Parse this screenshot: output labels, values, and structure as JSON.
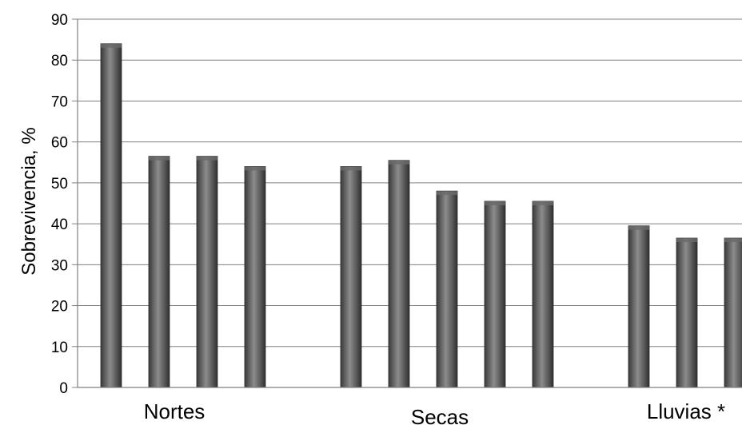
{
  "chart_data": {
    "type": "bar",
    "ylabel": "Sobrevivencia, %",
    "ylim": [
      0,
      90
    ],
    "yticks": [
      "0",
      "10",
      "20",
      "30",
      "40",
      "50",
      "60",
      "70",
      "80",
      "90"
    ],
    "grid": true,
    "groups": [
      {
        "label": "Nortes",
        "values": [
          84,
          56.5,
          56.5,
          54
        ]
      },
      {
        "label": "Secas",
        "values": [
          54,
          55.5,
          48,
          45.5,
          45.5
        ]
      },
      {
        "label": "Lluvias *",
        "values": [
          39.5,
          36.5,
          36.5
        ]
      }
    ],
    "colors": {
      "bar": "#4a4a4a",
      "bar_highlight": "#8c8c8c",
      "grid": "#808080",
      "axis": "#808080"
    }
  }
}
